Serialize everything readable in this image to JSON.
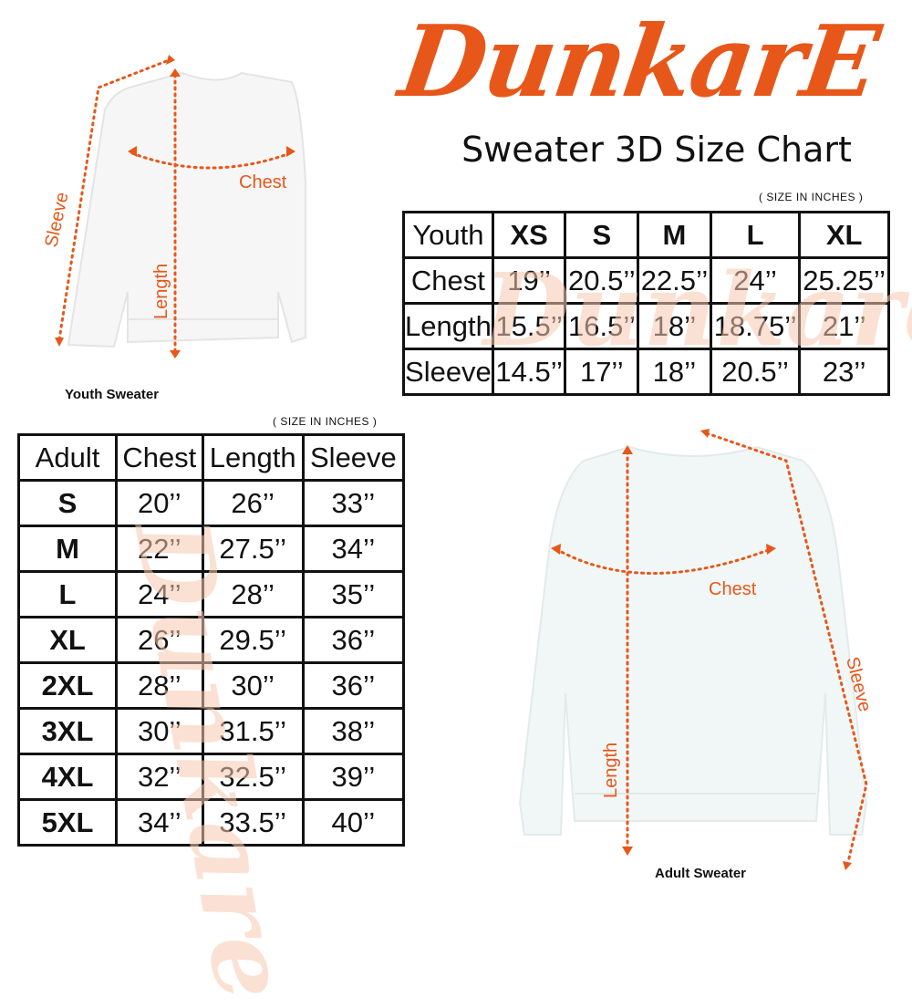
{
  "brand": {
    "logo_text": "DunkarE",
    "accent_color": "#e8571a"
  },
  "title": "Sweater 3D Size Chart",
  "youth": {
    "units_note": "( SIZE IN INCHES )",
    "caption": "Youth Sweater",
    "diagram_labels": {
      "chest": "Chest",
      "length": "Length",
      "sleeve": "Sleeve"
    },
    "headers": [
      "Youth",
      "XS",
      "S",
      "M",
      "L",
      "XL"
    ],
    "rows": [
      [
        "Chest",
        "19’’",
        "20.5’’",
        "22.5’’",
        "24’’",
        "25.25’’"
      ],
      [
        "Length",
        "15.5’’",
        "16.5’’",
        "18’’",
        "18.75’’",
        "21’’"
      ],
      [
        "Sleeve",
        "14.5’’",
        "17’’",
        "18’’",
        "20.5’’",
        "23’’"
      ]
    ]
  },
  "adult": {
    "units_note": "( SIZE IN INCHES )",
    "caption": "Adult Sweater",
    "diagram_labels": {
      "chest": "Chest",
      "length": "Length",
      "sleeve": "Sleeve"
    },
    "headers": [
      "Adult",
      "Chest",
      "Length",
      "Sleeve"
    ],
    "rows": [
      [
        "S",
        "20’’",
        "26’’",
        "33’’"
      ],
      [
        "M",
        "22’’",
        "27.5’’",
        "34’’"
      ],
      [
        "L",
        "24’’",
        "28’’",
        "35’’"
      ],
      [
        "XL",
        "26’’",
        "29.5’’",
        "36’’"
      ],
      [
        "2XL",
        "28’’",
        "30’’",
        "36’’"
      ],
      [
        "3XL",
        "30’’",
        "31.5’’",
        "38’’"
      ],
      [
        "4XL",
        "32’’",
        "32.5’’",
        "39’’"
      ],
      [
        "5XL",
        "34’’",
        "33.5’’",
        "40’’"
      ]
    ]
  }
}
